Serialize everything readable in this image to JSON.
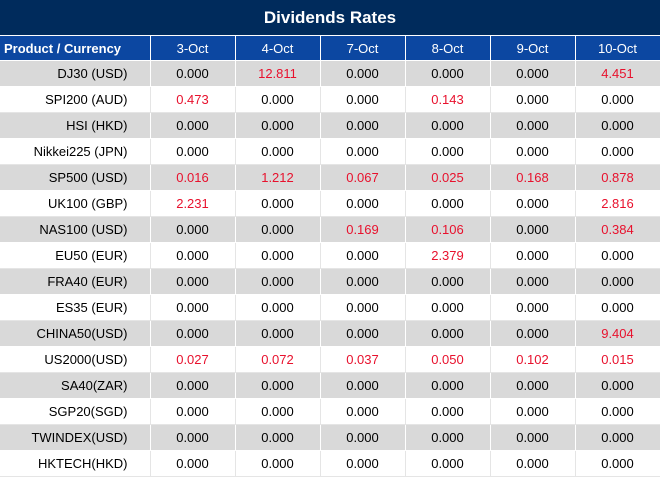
{
  "title": "Dividends Rates",
  "header": {
    "product_label": "Product / Currency",
    "dates": [
      "3-Oct",
      "4-Oct",
      "7-Oct",
      "8-Oct",
      "9-Oct",
      "10-Oct"
    ]
  },
  "colors": {
    "title_bg": "#002b5c",
    "header_bg": "#0c47a1",
    "highlight": "#e8112d",
    "row_shade": "#d9d9d9"
  },
  "rows": [
    {
      "product": "DJ30 (USD)",
      "values": [
        "0.000",
        "12.811",
        "0.000",
        "0.000",
        "0.000",
        "4.451"
      ]
    },
    {
      "product": "SPI200 (AUD)",
      "values": [
        "0.473",
        "0.000",
        "0.000",
        "0.143",
        "0.000",
        "0.000"
      ]
    },
    {
      "product": "HSI (HKD)",
      "values": [
        "0.000",
        "0.000",
        "0.000",
        "0.000",
        "0.000",
        "0.000"
      ]
    },
    {
      "product": "Nikkei225 (JPN)",
      "values": [
        "0.000",
        "0.000",
        "0.000",
        "0.000",
        "0.000",
        "0.000"
      ]
    },
    {
      "product": "SP500 (USD)",
      "values": [
        "0.016",
        "1.212",
        "0.067",
        "0.025",
        "0.168",
        "0.878"
      ]
    },
    {
      "product": "UK100 (GBP)",
      "values": [
        "2.231",
        "0.000",
        "0.000",
        "0.000",
        "0.000",
        "2.816"
      ]
    },
    {
      "product": "NAS100 (USD)",
      "values": [
        "0.000",
        "0.000",
        "0.169",
        "0.106",
        "0.000",
        "0.384"
      ]
    },
    {
      "product": "EU50 (EUR)",
      "values": [
        "0.000",
        "0.000",
        "0.000",
        "2.379",
        "0.000",
        "0.000"
      ]
    },
    {
      "product": "FRA40 (EUR)",
      "values": [
        "0.000",
        "0.000",
        "0.000",
        "0.000",
        "0.000",
        "0.000"
      ]
    },
    {
      "product": "ES35 (EUR)",
      "values": [
        "0.000",
        "0.000",
        "0.000",
        "0.000",
        "0.000",
        "0.000"
      ]
    },
    {
      "product": "CHINA50(USD)",
      "values": [
        "0.000",
        "0.000",
        "0.000",
        "0.000",
        "0.000",
        "9.404"
      ]
    },
    {
      "product": "US2000(USD)",
      "values": [
        "0.027",
        "0.072",
        "0.037",
        "0.050",
        "0.102",
        "0.015"
      ]
    },
    {
      "product": "SA40(ZAR)",
      "values": [
        "0.000",
        "0.000",
        "0.000",
        "0.000",
        "0.000",
        "0.000"
      ]
    },
    {
      "product": "SGP20(SGD)",
      "values": [
        "0.000",
        "0.000",
        "0.000",
        "0.000",
        "0.000",
        "0.000"
      ]
    },
    {
      "product": "TWINDEX(USD)",
      "values": [
        "0.000",
        "0.000",
        "0.000",
        "0.000",
        "0.000",
        "0.000"
      ]
    },
    {
      "product": "HKTECH(HKD)",
      "values": [
        "0.000",
        "0.000",
        "0.000",
        "0.000",
        "0.000",
        "0.000"
      ]
    }
  ]
}
